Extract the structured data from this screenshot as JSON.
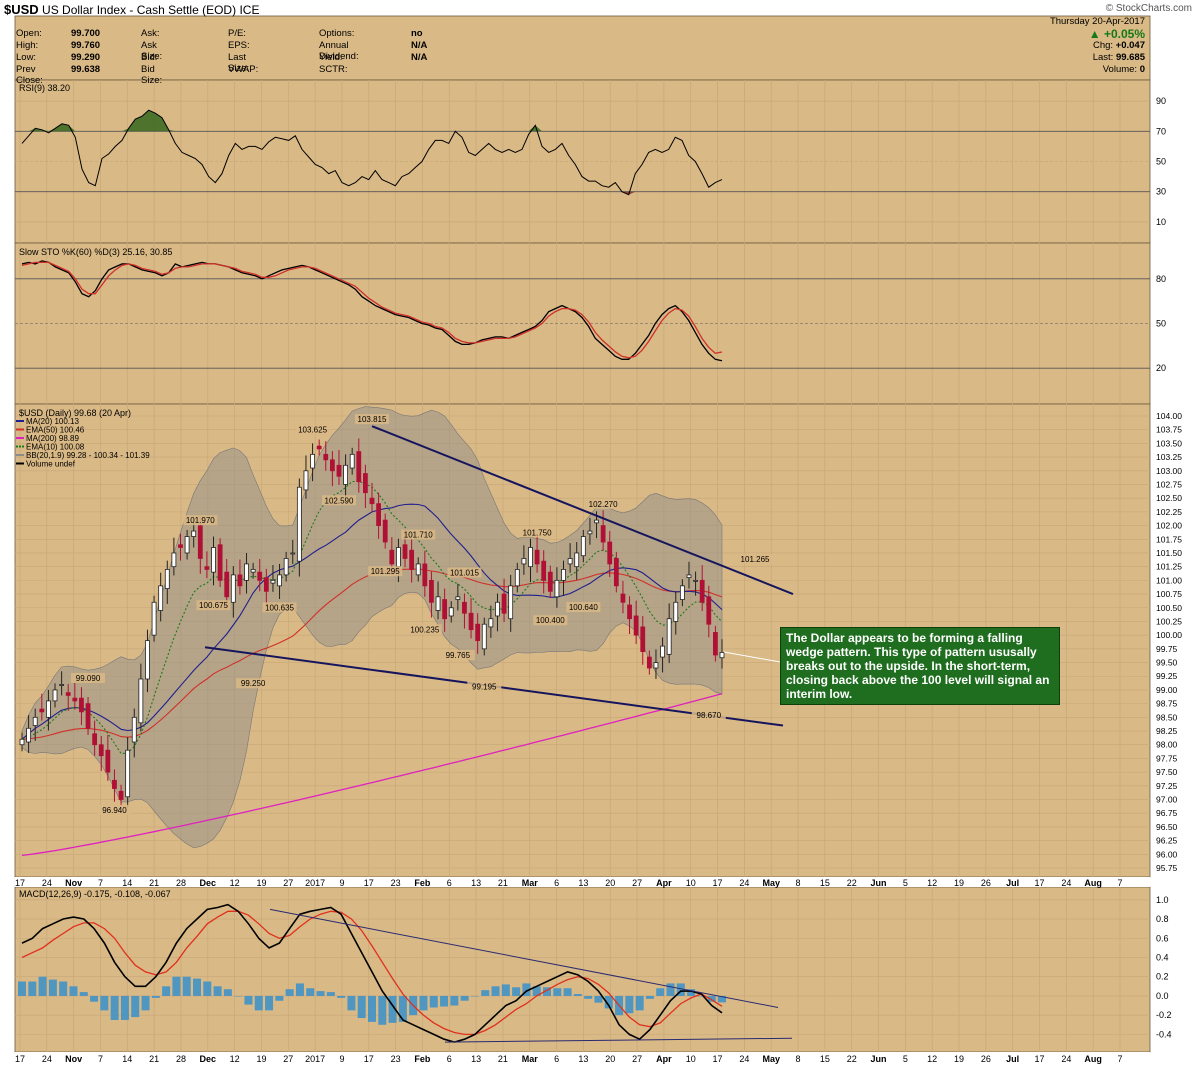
{
  "header": {
    "symbol": "$USD",
    "name": "US Dollar Index - Cash Settle (EOD)",
    "exchange": "ICE",
    "credit": "© StockCharts.com",
    "date": "Thursday 20-Apr-2017",
    "change_pct": "▲ +0.05%",
    "chg_label": "Chg:",
    "chg_value": "+0.047",
    "last_label": "Last:",
    "last_value": "99.685",
    "volume_label": "Volume:",
    "volume_value": "0"
  },
  "quote_rows": [
    {
      "label": "Open:",
      "value": "99.700",
      "label2": "Ask:",
      "value2": "",
      "label3": "P/E:",
      "value3": "",
      "label4": "Options:",
      "value4": "no"
    },
    {
      "label": "High:",
      "value": "99.760",
      "label2": "Ask Size:",
      "value2": "",
      "label3": "EPS:",
      "value3": "",
      "label4": "Annual Dividend:",
      "value4": "N/A"
    },
    {
      "label": "Low:",
      "value": "99.290",
      "label2": "Bid:",
      "value2": "",
      "label3": "Last Size:",
      "value3": "",
      "label4": "Yield:",
      "value4": "N/A"
    },
    {
      "label": "Prev Close:",
      "value": "99.638",
      "label2": "Bid Size:",
      "value2": "",
      "label3": "VWAP:",
      "value3": "",
      "label4": "SCTR:",
      "value4": ""
    }
  ],
  "annotation": "The Dollar appears to be forming a falling wedge pattern. This type of pattern ususally breaks out to the upside. In the short-term, closing back above the 100 level will signal an interim low.",
  "colors": {
    "bg": "#d9b986",
    "grid": "#c8a877",
    "up": "#222222",
    "down": "#b01035",
    "ma20": "#1f1f8f",
    "ema50": "#d0302a",
    "ma200": "#e020c0",
    "ema10": "#1a7a1a",
    "bb": "#8c8c8c",
    "macd_hist": "#3f92c8",
    "rsi_fill": "#3d6b22"
  },
  "chart_data": [
    {
      "type": "line",
      "title": "RSI(9) 38.20",
      "ylim": [
        0,
        100
      ],
      "yticks": [
        10,
        30,
        50,
        70,
        90
      ],
      "bands": [
        30,
        70
      ],
      "series": [
        {
          "name": "RSI(9)",
          "values": [
            62,
            67,
            72,
            71,
            69,
            72,
            75,
            74,
            66,
            45,
            36,
            34,
            52,
            55,
            60,
            64,
            72,
            78,
            80,
            84,
            82,
            79,
            71,
            62,
            56,
            54,
            52,
            48,
            40,
            36,
            42,
            54,
            62,
            58,
            60,
            60,
            58,
            63,
            66,
            65,
            64,
            67,
            58,
            53,
            48,
            46,
            42,
            44,
            36,
            34,
            36,
            40,
            38,
            44,
            38,
            36,
            34,
            40,
            42,
            46,
            50,
            58,
            64,
            64,
            62,
            70,
            66,
            56,
            54,
            58,
            62,
            58,
            56,
            58,
            56,
            58,
            68,
            74,
            60,
            56,
            58,
            62,
            54,
            48,
            40,
            37,
            37,
            34,
            33,
            36,
            30,
            28,
            42,
            48,
            56,
            58,
            56,
            58,
            66,
            64,
            54,
            50,
            42,
            33,
            36,
            38
          ]
        }
      ]
    },
    {
      "type": "line",
      "title": "Slow STO %K(60) %D(3) 25.16, 30.85",
      "ylim": [
        0,
        100
      ],
      "yticks": [
        20,
        50,
        80
      ],
      "series": [
        {
          "name": "%K(60)",
          "values": [
            90,
            91,
            90,
            92,
            91,
            88,
            86,
            84,
            78,
            70,
            68,
            72,
            80,
            86,
            88,
            90,
            90,
            88,
            86,
            85,
            84,
            82,
            84,
            90,
            88,
            89,
            90,
            91,
            90,
            90,
            89,
            88,
            86,
            84,
            83,
            82,
            80,
            82,
            84,
            86,
            87,
            88,
            89,
            88,
            86,
            84,
            82,
            80,
            78,
            76,
            73,
            68,
            65,
            62,
            60,
            58,
            56,
            55,
            54,
            52,
            50,
            49,
            47,
            46,
            42,
            38,
            36,
            36,
            37,
            39,
            40,
            41,
            41,
            40,
            42,
            44,
            46,
            48,
            52,
            58,
            60,
            62,
            60,
            58,
            54,
            48,
            40,
            36,
            32,
            28,
            26,
            26,
            30,
            36,
            42,
            50,
            56,
            60,
            62,
            58,
            52,
            44,
            36,
            30,
            26,
            25
          ]
        },
        {
          "name": "%D(3)",
          "values": [
            89,
            90,
            91,
            91,
            91,
            89,
            87,
            85,
            80,
            73,
            70,
            70,
            76,
            82,
            86,
            89,
            90,
            89,
            87,
            86,
            85,
            83,
            84,
            87,
            88,
            88,
            89,
            90,
            90,
            90,
            89,
            88,
            87,
            85,
            84,
            83,
            81,
            81,
            82,
            84,
            86,
            87,
            88,
            88,
            87,
            85,
            83,
            81,
            79,
            77,
            75,
            71,
            67,
            64,
            61,
            59,
            57,
            56,
            55,
            53,
            51,
            50,
            48,
            47,
            44,
            40,
            38,
            37,
            37,
            38,
            39,
            40,
            40,
            40,
            41,
            43,
            45,
            47,
            50,
            55,
            58,
            60,
            60,
            59,
            56,
            51,
            44,
            39,
            35,
            31,
            28,
            27,
            28,
            32,
            38,
            45,
            52,
            57,
            60,
            59,
            55,
            48,
            40,
            34,
            30,
            30.85
          ]
        }
      ]
    },
    {
      "type": "candlestick",
      "title": "$USD (Daily) 99.68 (20 Apr)",
      "legend": [
        "MA(20) 100.13",
        "EMA(50) 100.46",
        "MA(200) 98.89",
        "EMA(10) 100.08",
        "BB(20,1.9) 99.28 - 100.34 - 101.39",
        "Volume undef"
      ],
      "ylim": [
        95.75,
        104.0
      ],
      "yticks": [
        95.75,
        96.0,
        96.25,
        96.5,
        96.75,
        97.0,
        97.25,
        97.5,
        97.75,
        98.0,
        98.25,
        98.5,
        98.75,
        99.0,
        99.25,
        99.5,
        99.75,
        100.0,
        100.25,
        100.5,
        100.75,
        101.0,
        101.25,
        101.5,
        101.75,
        102.0,
        102.25,
        102.5,
        102.75,
        103.0,
        103.25,
        103.5,
        103.75,
        104.0
      ],
      "close": [
        98.1,
        98.3,
        98.5,
        98.6,
        98.8,
        99.0,
        99.1,
        98.9,
        98.8,
        98.6,
        98.3,
        98.0,
        97.8,
        97.5,
        97.2,
        97.0,
        97.9,
        98.5,
        99.2,
        99.9,
        100.6,
        100.9,
        101.2,
        101.5,
        101.6,
        101.8,
        101.9,
        101.4,
        101.2,
        101.6,
        101.0,
        100.7,
        101.1,
        100.9,
        101.3,
        101.2,
        101.0,
        100.8,
        101.0,
        101.1,
        101.4,
        101.5,
        102.7,
        103.0,
        103.3,
        103.4,
        103.2,
        103.0,
        102.9,
        103.1,
        103.3,
        102.8,
        102.6,
        102.4,
        102.0,
        101.7,
        101.3,
        101.6,
        101.4,
        101.2,
        101.3,
        100.9,
        100.6,
        100.7,
        100.3,
        100.5,
        100.7,
        100.4,
        100.1,
        99.9,
        100.2,
        100.3,
        100.6,
        100.4,
        100.9,
        101.2,
        101.4,
        101.6,
        101.3,
        101.0,
        100.8,
        101.0,
        101.2,
        101.4,
        101.5,
        101.8,
        101.9,
        102.1,
        101.7,
        101.3,
        100.9,
        100.6,
        100.3,
        100.0,
        99.7,
        99.4,
        99.5,
        99.8,
        100.3,
        100.6,
        100.9,
        101.1,
        101.0,
        100.6,
        100.2,
        99.638,
        99.685
      ],
      "markers": [
        {
          "label": "99.090",
          "x": 10,
          "y": 99.09
        },
        {
          "label": "96.940",
          "x": 14,
          "y": 96.94
        },
        {
          "label": "101.970",
          "x": 27,
          "y": 101.97
        },
        {
          "label": "100.675",
          "x": 29,
          "y": 100.675
        },
        {
          "label": "99.250",
          "x": 35,
          "y": 99.25
        },
        {
          "label": "100.635",
          "x": 39,
          "y": 100.635
        },
        {
          "label": "103.625",
          "x": 44,
          "y": 103.625
        },
        {
          "label": "102.590",
          "x": 48,
          "y": 102.59
        },
        {
          "label": "103.815",
          "x": 53,
          "y": 103.815
        },
        {
          "label": "101.295",
          "x": 55,
          "y": 101.295
        },
        {
          "label": "101.710",
          "x": 60,
          "y": 101.71
        },
        {
          "label": "100.235",
          "x": 61,
          "y": 100.235
        },
        {
          "label": "101.015",
          "x": 67,
          "y": 101.015
        },
        {
          "label": "99.765",
          "x": 66,
          "y": 99.765
        },
        {
          "label": "99.195",
          "x": 70,
          "y": 99.195
        },
        {
          "label": "101.750",
          "x": 78,
          "y": 101.75
        },
        {
          "label": "100.400",
          "x": 80,
          "y": 100.4
        },
        {
          "label": "100.640",
          "x": 85,
          "y": 100.64
        },
        {
          "label": "102.270",
          "x": 88,
          "y": 102.27
        },
        {
          "label": "98.670",
          "x": 104,
          "y": 98.67
        },
        {
          "label": "101.265",
          "x": 111,
          "y": 101.265
        }
      ]
    },
    {
      "type": "line",
      "title": "MACD(12,26,9) -0.175, -0.108, -0.067",
      "ylim": [
        -0.5,
        1.05
      ],
      "yticks": [
        -0.4,
        -0.2,
        0.0,
        0.2,
        0.4,
        0.6,
        0.8,
        1.0
      ],
      "series": [
        {
          "name": "MACD",
          "values": [
            0.55,
            0.6,
            0.7,
            0.75,
            0.8,
            0.82,
            0.8,
            0.7,
            0.55,
            0.35,
            0.2,
            0.1,
            0.1,
            0.2,
            0.35,
            0.55,
            0.7,
            0.8,
            0.9,
            0.92,
            0.95,
            0.88,
            0.75,
            0.6,
            0.5,
            0.55,
            0.7,
            0.85,
            0.88,
            0.9,
            0.92,
            0.85,
            0.65,
            0.45,
            0.25,
            0.05,
            -0.1,
            -0.25,
            -0.3,
            -0.35,
            -0.4,
            -0.45,
            -0.48,
            -0.45,
            -0.4,
            -0.3,
            -0.2,
            -0.1,
            -0.05,
            0.05,
            0.1,
            0.15,
            0.2,
            0.25,
            0.22,
            0.15,
            0.05,
            -0.1,
            -0.3,
            -0.4,
            -0.45,
            -0.35,
            -0.2,
            -0.05,
            0.05,
            0.05,
            0.02,
            -0.1,
            -0.175
          ]
        },
        {
          "name": "Signal",
          "values": [
            0.4,
            0.45,
            0.5,
            0.58,
            0.65,
            0.72,
            0.76,
            0.76,
            0.7,
            0.6,
            0.45,
            0.32,
            0.25,
            0.22,
            0.25,
            0.35,
            0.5,
            0.62,
            0.75,
            0.82,
            0.88,
            0.88,
            0.84,
            0.75,
            0.65,
            0.6,
            0.63,
            0.72,
            0.8,
            0.85,
            0.88,
            0.87,
            0.8,
            0.68,
            0.52,
            0.35,
            0.18,
            0.02,
            -0.1,
            -0.2,
            -0.28,
            -0.34,
            -0.38,
            -0.4,
            -0.4,
            -0.36,
            -0.3,
            -0.22,
            -0.14,
            -0.08,
            0.0,
            0.06,
            0.12,
            0.17,
            0.2,
            0.18,
            0.12,
            0.03,
            -0.1,
            -0.22,
            -0.3,
            -0.32,
            -0.28,
            -0.18,
            -0.08,
            -0.02,
            0.02,
            -0.04,
            -0.108
          ]
        }
      ]
    }
  ],
  "x_axis_labels": [
    "17",
    "24",
    "Nov",
    "7",
    "14",
    "21",
    "28",
    "Dec",
    "12",
    "19",
    "27",
    "2017",
    "9",
    "17",
    "23",
    "Feb",
    "6",
    "13",
    "21",
    "Mar",
    "6",
    "13",
    "20",
    "27",
    "Apr",
    "10",
    "17",
    "24",
    "May",
    "8",
    "15",
    "22",
    "Jun",
    "5",
    "12",
    "19",
    "26",
    "Jul",
    "17",
    "24",
    "Aug",
    "7"
  ]
}
